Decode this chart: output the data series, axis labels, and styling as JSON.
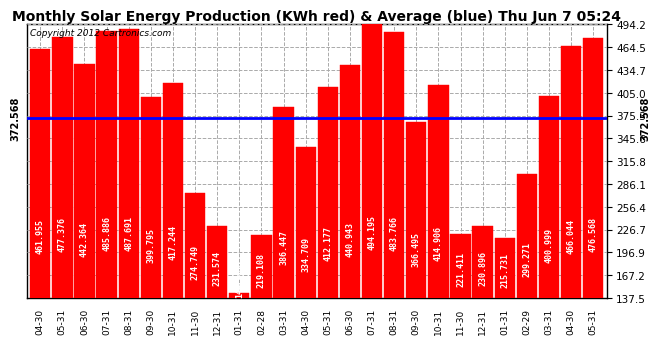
{
  "title": "Monthly Solar Energy Production (KWh red) & Average (blue) Thu Jun 7 05:24",
  "copyright": "Copyright 2012 Cartronics.com",
  "categories": [
    "04-30",
    "05-31",
    "06-30",
    "07-31",
    "08-31",
    "09-30",
    "10-31",
    "11-30",
    "12-31",
    "01-31",
    "02-28",
    "03-31",
    "04-30",
    "05-31",
    "06-30",
    "07-31",
    "08-31",
    "09-30",
    "10-31",
    "11-30",
    "12-31",
    "01-31",
    "02-29",
    "03-31",
    "04-30",
    "05-31"
  ],
  "values": [
    461.955,
    477.376,
    442.364,
    485.886,
    487.691,
    399.795,
    417.244,
    274.749,
    231.574,
    144.485,
    219.108,
    386.447,
    334.709,
    412.177,
    440.943,
    494.195,
    483.766,
    366.495,
    414.906,
    221.411,
    230.896,
    215.731,
    299.271,
    400.999,
    466.044,
    476.568
  ],
  "average": 372.568,
  "bar_color": "#FF0000",
  "avg_line_color": "#0000FF",
  "background_color": "#FFFFFF",
  "plot_bg_color": "#FFFFFF",
  "grid_color": "#AAAAAA",
  "ylim_min": 137.5,
  "ylim_max": 494.2,
  "yticks": [
    137.5,
    167.2,
    196.9,
    226.7,
    256.4,
    286.1,
    315.8,
    345.6,
    375.3,
    405.0,
    434.7,
    464.5,
    494.2
  ],
  "title_fontsize": 10,
  "bar_text_fontsize": 6.0,
  "avg_label": "372.568",
  "avg_label_fontsize": 7.0
}
